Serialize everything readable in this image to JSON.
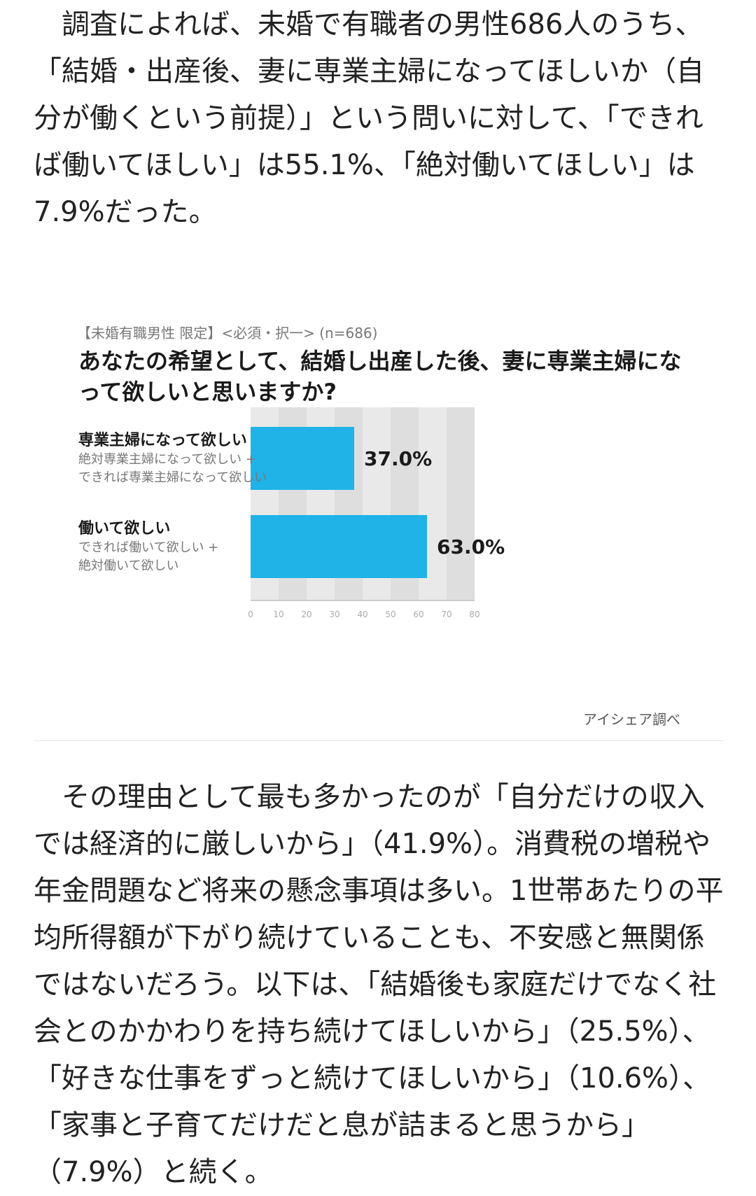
{
  "article": {
    "paragraph1": "　調査によれば、未婚で有職者の男性686人のうち、「結婚・出産後、妻に専業主婦になってほしいか（自分が働くという前提）」という問いに対して、「できれば働いてほしい」は55.1%、「絶対働いてほしい」は7.9%だった。",
    "paragraph2": "　その理由として最も多かったのが「自分だけの収入では経済的に厳しいから」（41.9%）。消費税の増税や年金問題など将来の懸念事項は多い。1世帯あたりの平均所得額が下がり続けていることも、不安感と無関係ではないだろう。以下は、「結婚後も家庭だけでなく社会とのかかわりを持ち続けてほしいから」（25.5%）、「好きな仕事をずっと続けてほしいから」（10.6%）、「家事と子育てだけだと息が詰まると思うから」（7.9%）と続く。"
  },
  "figure": {
    "survey_meta": "【未婚有職男性 限定】<必須・択一> (n=686)",
    "question": "あなたの希望として、結婚し出産した後、妻に専業主婦になって欲しいと思いますか?",
    "source": "アイシェア調べ"
  },
  "chart_data": {
    "type": "bar",
    "orientation": "horizontal",
    "categories": [
      {
        "title": "専業主婦になって欲しい",
        "sub1": "絶対専業主婦になって欲しい +",
        "sub2": "できれば専業主婦になって欲しい"
      },
      {
        "title": "働いて欲しい",
        "sub1": "できれば働いて欲しい +",
        "sub2": "絶対働いて欲しい"
      }
    ],
    "values": [
      37.0,
      63.0
    ],
    "value_labels": [
      "37.0%",
      "63.0%"
    ],
    "xlim": [
      0,
      80
    ],
    "x_ticks": [
      0,
      10,
      20,
      30,
      40,
      50,
      60,
      70,
      80
    ],
    "bar_color": "#1fb3e8",
    "grid": true
  }
}
